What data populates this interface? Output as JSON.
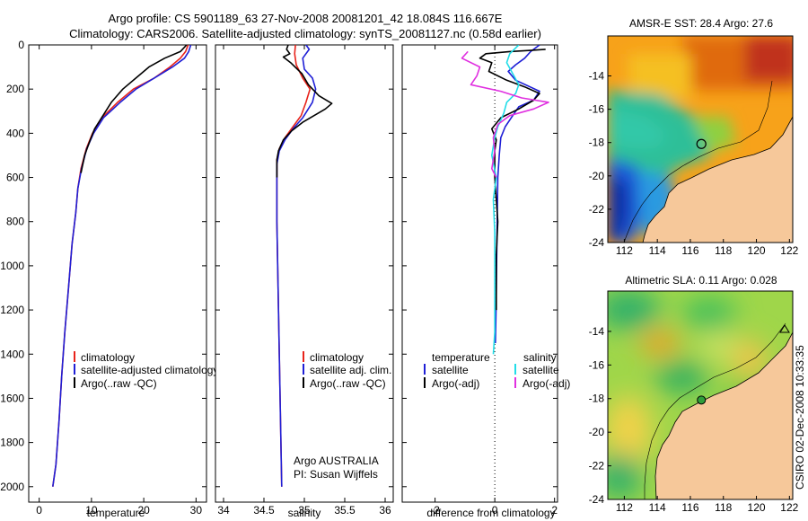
{
  "header": {
    "title_line1": "Argo profile: CS 5901189_63 27-Nov-2008 20081201_42 18.084S 116.667E",
    "title_line2": "Climatology: CARS2006. Satellite-adjusted climatology: synTS_20081127.nc (0.58d earlier)"
  },
  "colors": {
    "climatology": "#e8231b",
    "satellite": "#1f1fd6",
    "argo": "#000000",
    "satellite_salinity": "#22dde8",
    "argo_salinity_adj": "#e030e0",
    "land": "#f6c89a"
  },
  "chart_data": [
    {
      "type": "line",
      "panel": "temperature",
      "xlabel": "temperature",
      "ylabel": "",
      "xlim": [
        -2,
        32
      ],
      "ylim": [
        2070,
        0
      ],
      "xticks": [
        0,
        10,
        20,
        30
      ],
      "yticks": [
        0,
        200,
        400,
        600,
        800,
        1000,
        1200,
        1400,
        1600,
        1800,
        2000
      ],
      "legend": [
        "climatology",
        "satellite-adjusted climatology",
        "Argo(..raw -QC)"
      ],
      "legend_position": "lower-right",
      "series": [
        {
          "name": "climatology",
          "color_key": "climatology",
          "points": [
            [
              28.5,
              0
            ],
            [
              28,
              30
            ],
            [
              27,
              60
            ],
            [
              25,
              100
            ],
            [
              22,
              150
            ],
            [
              18,
              200
            ],
            [
              15,
              260
            ],
            [
              12,
              330
            ],
            [
              10.2,
              400
            ],
            [
              9,
              470
            ],
            [
              8,
              560
            ],
            [
              7.4,
              650
            ],
            [
              7,
              760
            ],
            [
              6.3,
              900
            ],
            [
              5.6,
              1100
            ],
            [
              4.9,
              1300
            ],
            [
              4.3,
              1500
            ],
            [
              3.8,
              1700
            ],
            [
              3.2,
              1900
            ],
            [
              2.6,
              2000
            ]
          ]
        },
        {
          "name": "satellite-adjusted climatology",
          "color_key": "satellite",
          "points": [
            [
              29,
              0
            ],
            [
              28.6,
              30
            ],
            [
              27.8,
              60
            ],
            [
              25.5,
              100
            ],
            [
              22,
              150
            ],
            [
              18.5,
              200
            ],
            [
              15.5,
              260
            ],
            [
              12.3,
              330
            ],
            [
              10.4,
              400
            ],
            [
              9.1,
              470
            ],
            [
              8.1,
              560
            ],
            [
              7.4,
              650
            ],
            [
              7,
              760
            ],
            [
              6.3,
              900
            ],
            [
              5.6,
              1100
            ],
            [
              4.9,
              1300
            ],
            [
              4.3,
              1500
            ],
            [
              3.8,
              1700
            ],
            [
              3.2,
              1900
            ],
            [
              2.6,
              2000
            ]
          ]
        },
        {
          "name": "Argo(..raw -QC)",
          "color_key": "argo",
          "points": [
            [
              28.2,
              0
            ],
            [
              27,
              30
            ],
            [
              24,
              60
            ],
            [
              21,
              100
            ],
            [
              18.5,
              150
            ],
            [
              16,
              200
            ],
            [
              13.8,
              260
            ],
            [
              12.2,
              320
            ],
            [
              10.6,
              380
            ],
            [
              9.6,
              440
            ],
            [
              8.7,
              500
            ],
            [
              8,
              580
            ]
          ]
        }
      ]
    },
    {
      "type": "line",
      "panel": "salinity",
      "xlabel": "salinity",
      "ylabel": "",
      "xlim": [
        33.9,
        36.1
      ],
      "ylim": [
        2070,
        0
      ],
      "xticks": [
        34,
        34.5,
        35,
        35.5,
        36
      ],
      "yticks": [
        0,
        200,
        400,
        600,
        800,
        1000,
        1200,
        1400,
        1600,
        1800,
        2000
      ],
      "legend": [
        "climatology",
        "satellite adj. clim.",
        "Argo(..raw -QC)"
      ],
      "legend_position": "lower-right",
      "annotation_line1": "Argo AUSTRALIA",
      "annotation_line2": "PI: Susan Wijffels",
      "series": [
        {
          "name": "climatology",
          "color_key": "climatology",
          "points": [
            [
              34.89,
              0
            ],
            [
              34.88,
              40
            ],
            [
              34.9,
              90
            ],
            [
              34.98,
              150
            ],
            [
              35.07,
              200
            ],
            [
              35.02,
              260
            ],
            [
              34.96,
              320
            ],
            [
              34.86,
              370
            ],
            [
              34.76,
              420
            ],
            [
              34.69,
              470
            ],
            [
              34.66,
              520
            ],
            [
              34.66,
              600
            ],
            [
              34.66,
              800
            ],
            [
              34.67,
              1000
            ],
            [
              34.68,
              1200
            ],
            [
              34.69,
              1400
            ],
            [
              34.7,
              1600
            ],
            [
              34.71,
              1800
            ],
            [
              34.72,
              2000
            ]
          ]
        },
        {
          "name": "satellite adj. clim.",
          "color_key": "satellite",
          "points": [
            [
              35.02,
              0
            ],
            [
              35.06,
              20
            ],
            [
              34.98,
              60
            ],
            [
              35.0,
              110
            ],
            [
              35.1,
              150
            ],
            [
              35.14,
              200
            ],
            [
              35.1,
              260
            ],
            [
              34.98,
              330
            ],
            [
              34.86,
              380
            ],
            [
              34.76,
              430
            ],
            [
              34.69,
              480
            ],
            [
              34.66,
              540
            ],
            [
              34.66,
              620
            ],
            [
              34.66,
              800
            ],
            [
              34.67,
              1000
            ],
            [
              34.68,
              1200
            ],
            [
              34.69,
              1400
            ],
            [
              34.7,
              1600
            ],
            [
              34.71,
              1800
            ],
            [
              34.72,
              2000
            ]
          ]
        },
        {
          "name": "Argo(..raw -QC)",
          "color_key": "argo",
          "points": [
            [
              34.8,
              0
            ],
            [
              34.78,
              20
            ],
            [
              34.82,
              40
            ],
            [
              34.74,
              55
            ],
            [
              34.83,
              80
            ],
            [
              34.97,
              130
            ],
            [
              35.05,
              180
            ],
            [
              35.18,
              230
            ],
            [
              35.34,
              265
            ],
            [
              35.26,
              290
            ],
            [
              35.12,
              320
            ],
            [
              34.98,
              350
            ],
            [
              34.84,
              390
            ],
            [
              34.74,
              430
            ],
            [
              34.68,
              480
            ],
            [
              34.66,
              520
            ],
            [
              34.66,
              600
            ]
          ]
        }
      ]
    },
    {
      "type": "line",
      "panel": "difference",
      "xlabel": "difference from climatology",
      "ylabel": "",
      "xlim": [
        -3.1,
        2.1
      ],
      "ylim": [
        2070,
        0
      ],
      "xticks": [
        -2,
        0,
        2
      ],
      "yticks": [
        0,
        200,
        400,
        600,
        800,
        1000,
        1200,
        1400,
        1600,
        1800,
        2000
      ],
      "legend_title_left": "temperature",
      "legend_title_right": "salinity",
      "legend": [
        "satellite",
        "Argo(-adj)",
        "satellite",
        "Argo(-adj)"
      ],
      "legend_position": "lower-right",
      "series": [
        {
          "name": "temperature satellite",
          "color_key": "satellite",
          "points": [
            [
              1.5,
              0
            ],
            [
              1.2,
              30
            ],
            [
              1.0,
              60
            ],
            [
              0.7,
              90
            ],
            [
              0.45,
              120
            ],
            [
              0.7,
              160
            ],
            [
              1.5,
              210
            ],
            [
              1.3,
              250
            ],
            [
              0.8,
              280
            ],
            [
              0.6,
              320
            ],
            [
              0.35,
              370
            ],
            [
              0.2,
              420
            ],
            [
              0.15,
              500
            ],
            [
              0.1,
              600
            ],
            [
              0.08,
              800
            ],
            [
              0.06,
              1000
            ],
            [
              0.04,
              1200
            ],
            [
              0.02,
              1350
            ]
          ]
        },
        {
          "name": "temperature Argo(-adj)",
          "color_key": "argo",
          "points": [
            [
              1.7,
              20
            ],
            [
              1.2,
              25
            ],
            [
              0.5,
              30
            ],
            [
              -0.3,
              40
            ],
            [
              -0.5,
              60
            ],
            [
              -0.1,
              80
            ],
            [
              -0.2,
              120
            ],
            [
              0.4,
              160
            ],
            [
              1.0,
              190
            ],
            [
              1.5,
              220
            ],
            [
              1.3,
              250
            ],
            [
              0.8,
              290
            ],
            [
              0.2,
              330
            ],
            [
              -0.1,
              380
            ],
            [
              0.05,
              430
            ],
            [
              0.0,
              480
            ],
            [
              0.0,
              600
            ],
            [
              0.05,
              700
            ],
            [
              0.1,
              800
            ],
            [
              0.05,
              950
            ],
            [
              0.05,
              1100
            ],
            [
              0.05,
              1200
            ]
          ]
        },
        {
          "name": "salinity satellite",
          "color_key": "satellite_salinity",
          "points": [
            [
              0.8,
              0
            ],
            [
              0.5,
              40
            ],
            [
              0.4,
              80
            ],
            [
              0.6,
              130
            ],
            [
              0.8,
              180
            ],
            [
              0.7,
              220
            ],
            [
              0.4,
              260
            ],
            [
              0.3,
              310
            ],
            [
              0.1,
              370
            ],
            [
              0.0,
              420
            ],
            [
              -0.1,
              500
            ],
            [
              0.05,
              600
            ],
            [
              -0.05,
              700
            ],
            [
              0.0,
              850
            ],
            [
              0.0,
              1000
            ],
            [
              0.0,
              1200
            ],
            [
              0.0,
              1300
            ],
            [
              -0.05,
              1400
            ]
          ]
        },
        {
          "name": "salinity Argo(-adj)",
          "color_key": "argo_salinity_adj",
          "points": [
            [
              -0.9,
              30
            ],
            [
              -1.1,
              60
            ],
            [
              -0.5,
              100
            ],
            [
              -0.6,
              140
            ],
            [
              -0.8,
              180
            ],
            [
              0.2,
              210
            ],
            [
              0.9,
              240
            ],
            [
              1.8,
              260
            ],
            [
              1.3,
              290
            ],
            [
              0.5,
              320
            ],
            [
              0.1,
              360
            ],
            [
              -0.05,
              420
            ],
            [
              0.0,
              480
            ],
            [
              -0.1,
              560
            ],
            [
              0.05,
              600
            ]
          ]
        }
      ]
    },
    {
      "type": "heatmap",
      "panel": "sst_map",
      "title": "AMSR-E SST: 28.4  Argo: 27.6",
      "xticks": [
        112,
        114,
        116,
        118,
        120,
        122
      ],
      "yticks": [
        -14,
        -16,
        -18,
        -20,
        -22,
        -24
      ],
      "xlim": [
        111,
        122.2
      ],
      "ylim": [
        -24,
        -11.6
      ],
      "float_position": [
        116.667,
        -18.084
      ]
    },
    {
      "type": "heatmap",
      "panel": "sla_map",
      "title": "Altimetric SLA: 0.11  Argo: 0.028",
      "xticks": [
        112,
        114,
        116,
        118,
        120,
        122
      ],
      "yticks": [
        -14,
        -16,
        -18,
        -20,
        -22,
        -24
      ],
      "xlim": [
        111,
        122.2
      ],
      "ylim": [
        -24,
        -11.6
      ],
      "float_position": [
        116.667,
        -18.084
      ]
    }
  ],
  "footer": {
    "credit": "CSIRO 02-Dec-2008 10:33:35"
  }
}
